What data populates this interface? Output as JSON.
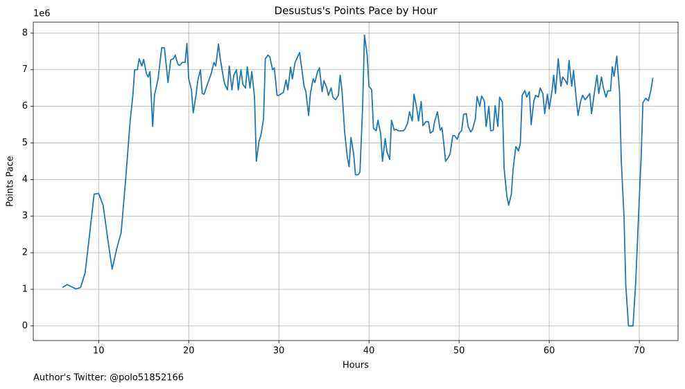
{
  "chart_data": {
    "type": "line",
    "title": "Desustus's Points Pace by Hour",
    "x_label": "Hours",
    "y_label": "Points Pace",
    "y_offset_label": "1e6",
    "footnote": "Author's Twitter: @polo51852166",
    "grid": true,
    "xlim": [
      2.75,
      74.3
    ],
    "ylim": [
      -0.4,
      8.3
    ],
    "xticks": [
      10,
      20,
      30,
      40,
      50,
      60,
      70
    ],
    "yticks": [
      0,
      1,
      2,
      3,
      4,
      5,
      6,
      7,
      8
    ],
    "series": [
      {
        "name": "Points Pace",
        "color": "#1f77b4",
        "x": [
          6.0,
          6.5,
          7.0,
          7.5,
          8.0,
          8.5,
          9.0,
          9.5,
          10.0,
          10.5,
          11.0,
          11.5,
          12.0,
          12.5,
          13.0,
          13.5,
          13.8,
          14.0,
          14.3,
          14.5,
          14.8,
          15.0,
          15.3,
          15.5,
          15.7,
          16.0,
          16.2,
          16.6,
          17.0,
          17.3,
          17.7,
          18.0,
          18.3,
          18.5,
          18.8,
          19.0,
          19.3,
          19.6,
          19.8,
          20.0,
          20.3,
          20.5,
          20.8,
          21.0,
          21.3,
          21.5,
          21.7,
          22.0,
          22.5,
          22.8,
          23.0,
          23.3,
          23.5,
          23.8,
          24.0,
          24.3,
          24.5,
          24.8,
          25.0,
          25.3,
          25.5,
          25.8,
          26.0,
          26.3,
          26.5,
          26.8,
          27.0,
          27.3,
          27.5,
          27.8,
          28.0,
          28.3,
          28.5,
          28.8,
          29.0,
          29.3,
          29.5,
          29.8,
          30.0,
          30.5,
          30.8,
          31.0,
          31.3,
          31.5,
          31.8,
          32.3,
          32.5,
          32.8,
          33.0,
          33.3,
          33.5,
          33.8,
          34.0,
          34.3,
          34.5,
          34.8,
          35.0,
          35.3,
          35.5,
          35.8,
          36.0,
          36.3,
          36.6,
          36.8,
          37.0,
          37.3,
          37.6,
          37.8,
          38.0,
          38.3,
          38.5,
          38.8,
          39.0,
          39.3,
          39.5,
          39.8,
          40.0,
          40.3,
          40.5,
          40.8,
          41.0,
          41.3,
          41.5,
          41.8,
          42.0,
          42.3,
          42.5,
          42.8,
          43.0,
          43.3,
          43.8,
          44.0,
          44.3,
          44.5,
          44.8,
          45.0,
          45.3,
          45.5,
          45.8,
          46.0,
          46.3,
          46.6,
          46.8,
          47.1,
          47.3,
          47.6,
          47.9,
          48.1,
          48.3,
          48.5,
          48.8,
          49.0,
          49.3,
          49.5,
          49.8,
          50.0,
          50.3,
          50.5,
          50.8,
          51.0,
          51.3,
          51.5,
          51.8,
          52.0,
          52.3,
          52.5,
          52.8,
          53.0,
          53.3,
          53.5,
          53.8,
          54.0,
          54.3,
          54.5,
          54.8,
          55.0,
          55.3,
          55.5,
          55.8,
          56.0,
          56.3,
          56.6,
          56.8,
          57.0,
          57.3,
          57.5,
          57.8,
          58.0,
          58.3,
          58.5,
          58.8,
          59.0,
          59.3,
          59.5,
          59.8,
          60.0,
          60.3,
          60.5,
          60.7,
          61.0,
          61.3,
          61.5,
          61.8,
          62.0,
          62.2,
          62.5,
          62.7,
          63.0,
          63.2,
          63.5,
          63.7,
          64.0,
          64.3,
          64.5,
          64.7,
          65.0,
          65.3,
          65.5,
          65.8,
          66.0,
          66.3,
          66.5,
          66.8,
          67.0,
          67.2,
          67.5,
          67.8,
          68.0,
          68.3,
          68.5,
          68.8,
          69.0,
          69.3,
          69.6,
          70.0,
          70.2,
          70.4,
          70.7,
          71.0,
          71.3,
          71.5
        ],
        "values": [
          1.05,
          1.13,
          1.07,
          1.01,
          1.05,
          1.45,
          2.5,
          3.6,
          3.62,
          3.3,
          2.4,
          1.55,
          2.1,
          2.55,
          4.0,
          5.6,
          6.3,
          7.0,
          7.0,
          7.3,
          7.1,
          7.28,
          6.9,
          6.8,
          6.95,
          5.45,
          6.3,
          6.75,
          7.6,
          7.6,
          6.65,
          7.27,
          7.3,
          7.4,
          7.15,
          7.12,
          7.2,
          7.2,
          7.72,
          6.75,
          6.45,
          5.82,
          6.3,
          6.7,
          7.0,
          6.35,
          6.33,
          6.55,
          6.9,
          7.2,
          7.1,
          7.7,
          7.3,
          6.85,
          6.6,
          6.45,
          7.1,
          6.45,
          6.85,
          7.0,
          6.45,
          7.0,
          6.6,
          6.5,
          7.08,
          6.5,
          6.95,
          6.25,
          4.5,
          5.05,
          5.2,
          5.65,
          7.3,
          7.4,
          7.35,
          7.0,
          7.05,
          6.3,
          6.3,
          6.38,
          6.72,
          6.45,
          7.07,
          6.75,
          7.2,
          7.47,
          7.1,
          6.55,
          6.4,
          5.75,
          6.35,
          6.75,
          6.65,
          6.95,
          7.05,
          6.4,
          6.7,
          6.52,
          6.3,
          6.5,
          6.25,
          6.18,
          6.3,
          6.85,
          6.45,
          5.3,
          4.6,
          4.35,
          5.15,
          4.7,
          4.13,
          4.13,
          4.2,
          6.0,
          7.95,
          7.4,
          6.55,
          6.45,
          5.4,
          5.33,
          5.62,
          5.25,
          4.5,
          5.12,
          4.75,
          4.55,
          5.62,
          5.35,
          5.37,
          5.33,
          5.33,
          5.38,
          5.55,
          5.85,
          5.6,
          6.33,
          5.95,
          5.6,
          6.13,
          5.47,
          5.58,
          5.58,
          5.27,
          5.32,
          5.6,
          5.85,
          5.35,
          5.42,
          5.0,
          4.5,
          4.6,
          4.7,
          5.2,
          5.2,
          5.1,
          5.25,
          5.35,
          5.78,
          5.8,
          5.45,
          5.3,
          5.38,
          5.65,
          6.27,
          6.0,
          6.28,
          6.15,
          5.45,
          6.0,
          5.33,
          5.35,
          6.02,
          5.45,
          6.25,
          6.12,
          4.3,
          3.55,
          3.3,
          3.6,
          4.3,
          4.9,
          4.78,
          5.0,
          6.3,
          6.43,
          6.25,
          6.4,
          5.5,
          6.15,
          6.3,
          6.25,
          6.5,
          6.35,
          5.8,
          6.33,
          5.93,
          6.4,
          6.85,
          6.35,
          7.3,
          6.55,
          6.8,
          6.7,
          6.6,
          7.25,
          6.55,
          6.98,
          6.2,
          5.75,
          6.15,
          6.3,
          6.18,
          6.28,
          6.35,
          5.8,
          6.35,
          6.85,
          6.35,
          6.8,
          6.52,
          6.25,
          6.42,
          6.42,
          7.08,
          6.82,
          7.37,
          6.42,
          4.5,
          3.0,
          1.1,
          0,
          0,
          0,
          1.2,
          3.5,
          4.6,
          6.1,
          6.22,
          6.15,
          6.45,
          6.78
        ]
      }
    ]
  }
}
